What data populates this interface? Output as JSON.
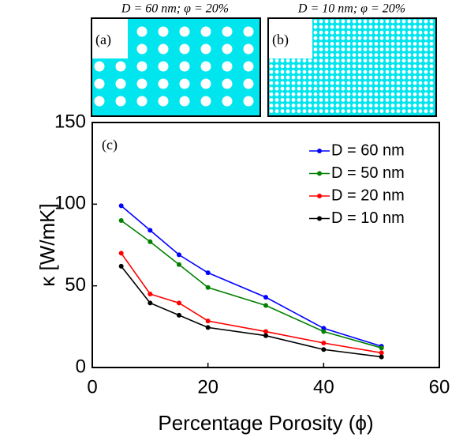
{
  "insets": [
    {
      "title": "D = 60 nm; φ = 20%",
      "label": "(a)"
    },
    {
      "title": "D = 10 nm; φ = 20%",
      "label": "(b)"
    }
  ],
  "chart_data": {
    "type": "line",
    "panel_label": "(c)",
    "xlabel": "Percentage Porosity (ϕ)",
    "ylabel": "κ [W/mK]",
    "x": [
      5,
      10,
      15,
      20,
      30,
      40,
      50
    ],
    "series": [
      {
        "name": "D = 60 nm",
        "color": "#0000ff",
        "values": [
          99,
          84,
          69,
          58,
          43,
          24,
          13
        ]
      },
      {
        "name": "D = 50 nm",
        "color": "#008000",
        "values": [
          90,
          77,
          63,
          49,
          38,
          22,
          12
        ]
      },
      {
        "name": "D = 20 nm",
        "color": "#ff0000",
        "values": [
          70,
          45,
          39.5,
          28.5,
          22,
          15,
          9
        ]
      },
      {
        "name": "D = 10 nm",
        "color": "#000000",
        "values": [
          62,
          39.5,
          32,
          24.5,
          19.5,
          11,
          6.5
        ]
      }
    ],
    "xlim": [
      0,
      60
    ],
    "xticks": [
      0,
      20,
      40,
      60
    ],
    "ylim": [
      0,
      150
    ],
    "yticks": [
      0,
      50,
      100,
      150
    ],
    "legend": "upper right"
  }
}
